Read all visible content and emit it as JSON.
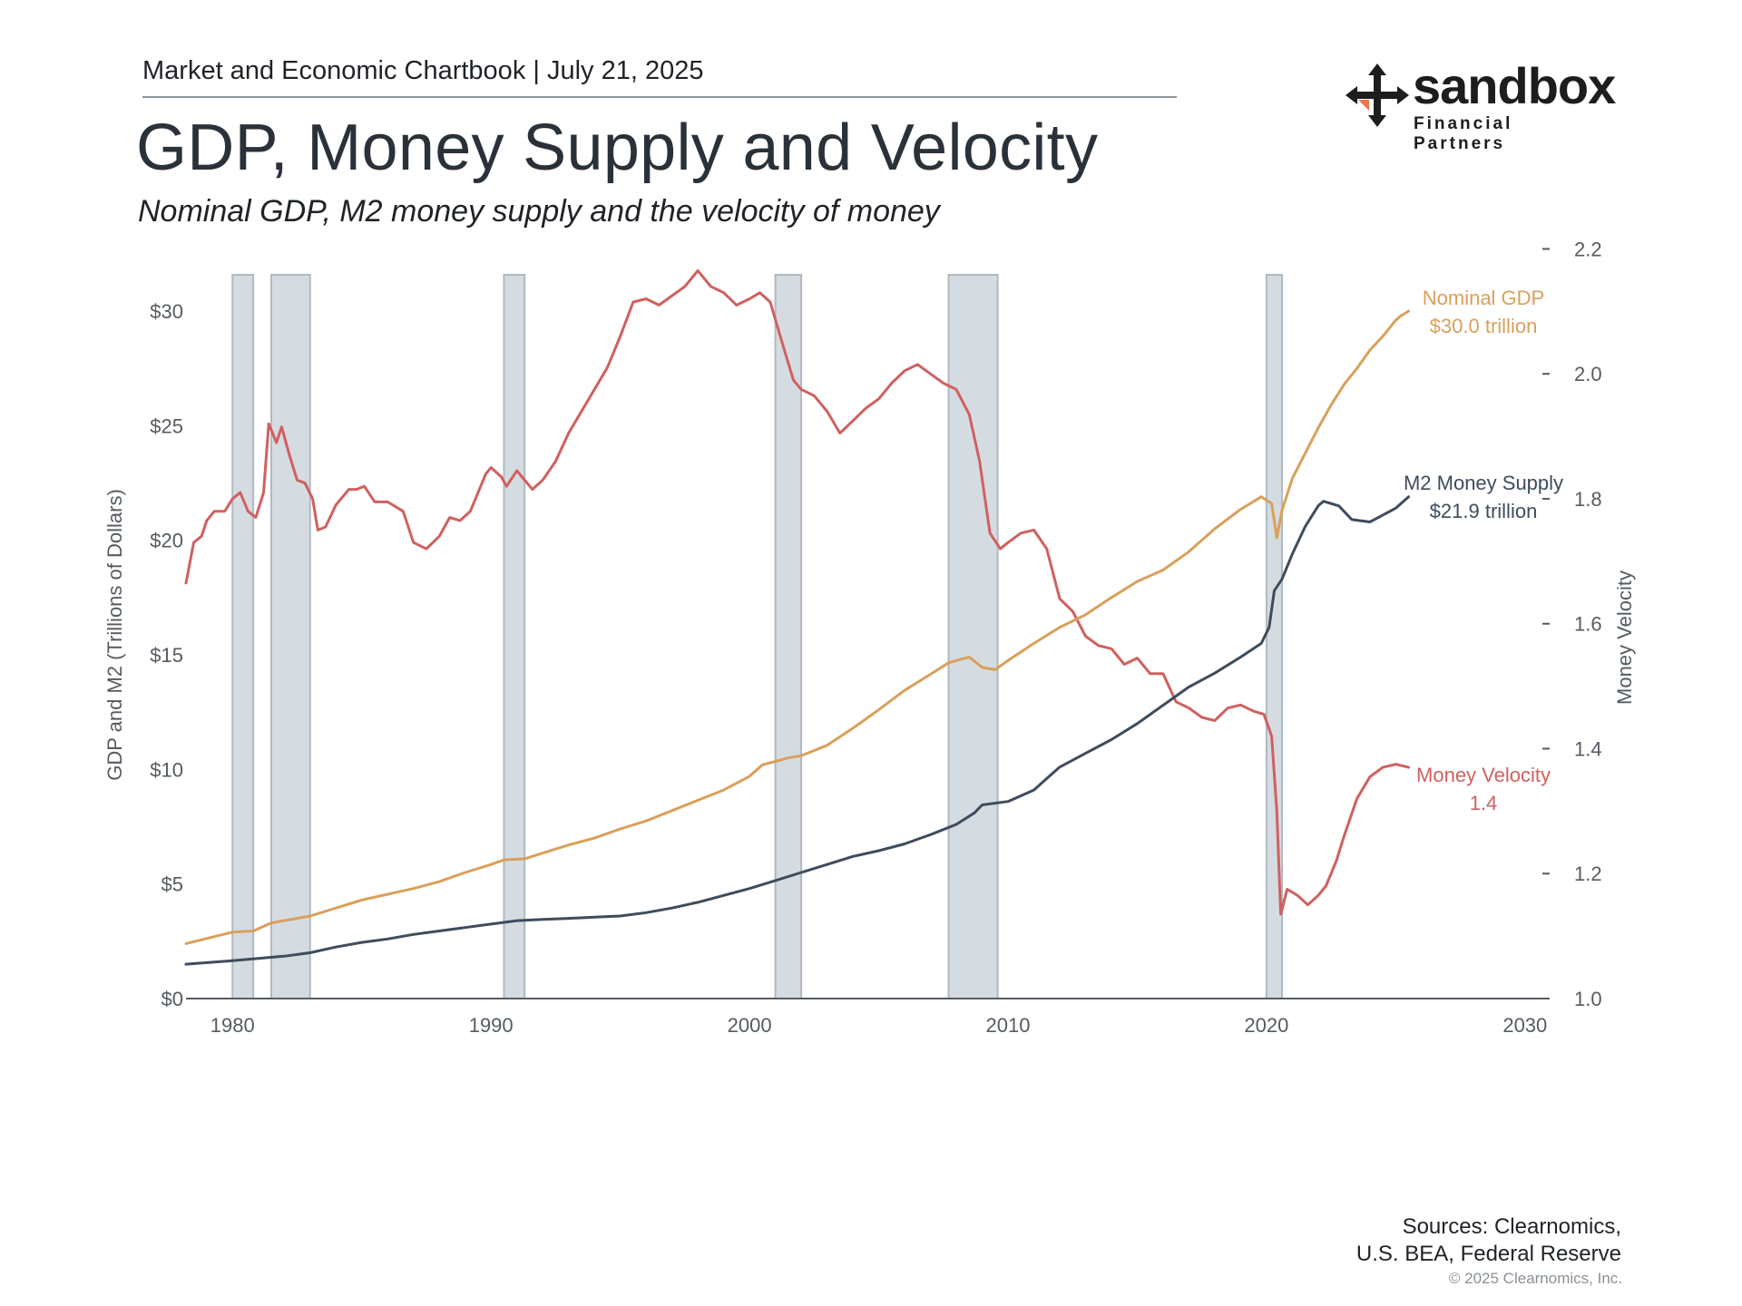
{
  "header": {
    "chartbook_line": "Market and Economic Chartbook | July 21, 2025",
    "title": "GDP, Money Supply and Velocity",
    "subtitle": "Nominal GDP, M2 money supply and the velocity of money"
  },
  "logo": {
    "word": "sandbox",
    "sub": "Financial Partners",
    "accent_color": "#e8774a"
  },
  "footer": {
    "sources_line1": "Sources: Clearnomics,",
    "sources_line2": "U.S. BEA, Federal Reserve",
    "copyright": "© 2025 Clearnomics, Inc."
  },
  "chart_data": {
    "type": "line",
    "ylabel_left": "GDP and M2 (Trillions of Dollars)",
    "ylabel_right": "Money Velocity",
    "xlim": [
      1978.2,
      2031.2
    ],
    "ylim_left": [
      0,
      30
    ],
    "ylim_right": [
      1.0,
      2.25
    ],
    "x_ticks": [
      "1980",
      "1990",
      "2000",
      "2010",
      "2020",
      "2030"
    ],
    "x_tick_values": [
      1980,
      1990,
      2000,
      2010,
      2020,
      2030
    ],
    "y_left_ticks": [
      "$0",
      "$5",
      "$10",
      "$15",
      "$20",
      "$25",
      "$30"
    ],
    "y_left_tick_values": [
      0,
      5,
      10,
      15,
      20,
      25,
      30
    ],
    "y_right_ticks": [
      "1.0",
      "1.2",
      "1.4",
      "1.6",
      "1.8",
      "2.0",
      "2.2"
    ],
    "y_right_tick_values": [
      1.0,
      1.2,
      1.4,
      1.6,
      1.8,
      2.0,
      2.2
    ],
    "recessions": [
      [
        1980.0,
        1980.8
      ],
      [
        1981.5,
        1983.0
      ],
      [
        1990.5,
        1991.3
      ],
      [
        2001.0,
        2002.0
      ],
      [
        2007.7,
        2009.6
      ],
      [
        2020.0,
        2020.6
      ]
    ],
    "colors": {
      "gdp": "#d9a05b",
      "m2": "#3e4c5c",
      "velocity": "#d06060",
      "recession": "#d5dce1",
      "recession_border": "#b0b9c1",
      "axis": "#555b61",
      "tick_text": "#555b61"
    },
    "series": [
      {
        "name": "Nominal GDP",
        "axis": "left",
        "label_line1": "Nominal GDP",
        "label_line2": "$30.0 trillion",
        "points": [
          [
            1978.2,
            2.4
          ],
          [
            1980.0,
            2.9
          ],
          [
            1980.8,
            2.95
          ],
          [
            1981.5,
            3.3
          ],
          [
            1983.0,
            3.6
          ],
          [
            1985.0,
            4.3
          ],
          [
            1987.0,
            4.8
          ],
          [
            1988.0,
            5.1
          ],
          [
            1989.0,
            5.5
          ],
          [
            1990.0,
            5.85
          ],
          [
            1990.5,
            6.05
          ],
          [
            1991.3,
            6.1
          ],
          [
            1992.0,
            6.35
          ],
          [
            1993.0,
            6.7
          ],
          [
            1994.0,
            7.0
          ],
          [
            1995.0,
            7.4
          ],
          [
            1996.0,
            7.75
          ],
          [
            1997.0,
            8.2
          ],
          [
            1998.0,
            8.65
          ],
          [
            1999.0,
            9.1
          ],
          [
            2000.0,
            9.7
          ],
          [
            2000.5,
            10.2
          ],
          [
            2001.0,
            10.35
          ],
          [
            2001.5,
            10.5
          ],
          [
            2002.0,
            10.6
          ],
          [
            2003.0,
            11.05
          ],
          [
            2004.0,
            11.8
          ],
          [
            2005.0,
            12.6
          ],
          [
            2006.0,
            13.45
          ],
          [
            2007.0,
            14.15
          ],
          [
            2007.7,
            14.65
          ],
          [
            2008.0,
            14.75
          ],
          [
            2008.5,
            14.9
          ],
          [
            2009.0,
            14.45
          ],
          [
            2009.5,
            14.35
          ],
          [
            2010.0,
            14.75
          ],
          [
            2011.0,
            15.5
          ],
          [
            2012.0,
            16.2
          ],
          [
            2013.0,
            16.75
          ],
          [
            2014.0,
            17.5
          ],
          [
            2015.0,
            18.2
          ],
          [
            2016.0,
            18.7
          ],
          [
            2017.0,
            19.5
          ],
          [
            2018.0,
            20.5
          ],
          [
            2019.0,
            21.35
          ],
          [
            2019.8,
            21.9
          ],
          [
            2020.2,
            21.6
          ],
          [
            2020.4,
            20.1
          ],
          [
            2020.6,
            21.3
          ],
          [
            2021.0,
            22.7
          ],
          [
            2021.5,
            23.8
          ],
          [
            2022.0,
            24.9
          ],
          [
            2022.5,
            25.9
          ],
          [
            2023.0,
            26.8
          ],
          [
            2023.5,
            27.5
          ],
          [
            2024.0,
            28.3
          ],
          [
            2024.5,
            28.9
          ],
          [
            2025.0,
            29.6
          ],
          [
            2025.2,
            29.8
          ],
          [
            2025.5,
            30.0
          ]
        ]
      },
      {
        "name": "M2 Money Supply",
        "axis": "left",
        "label_line1": "M2 Money Supply",
        "label_line2": "$21.9 trillion",
        "points": [
          [
            1978.2,
            1.5
          ],
          [
            1980.0,
            1.65
          ],
          [
            1982.0,
            1.85
          ],
          [
            1983.0,
            2.0
          ],
          [
            1984.0,
            2.25
          ],
          [
            1985.0,
            2.45
          ],
          [
            1986.0,
            2.6
          ],
          [
            1987.0,
            2.8
          ],
          [
            1988.0,
            2.95
          ],
          [
            1989.0,
            3.1
          ],
          [
            1990.0,
            3.25
          ],
          [
            1991.0,
            3.4
          ],
          [
            1992.0,
            3.45
          ],
          [
            1993.0,
            3.5
          ],
          [
            1994.0,
            3.55
          ],
          [
            1995.0,
            3.6
          ],
          [
            1996.0,
            3.75
          ],
          [
            1997.0,
            3.95
          ],
          [
            1998.0,
            4.2
          ],
          [
            1999.0,
            4.5
          ],
          [
            2000.0,
            4.8
          ],
          [
            2001.0,
            5.15
          ],
          [
            2002.0,
            5.5
          ],
          [
            2003.0,
            5.85
          ],
          [
            2004.0,
            6.2
          ],
          [
            2005.0,
            6.45
          ],
          [
            2006.0,
            6.75
          ],
          [
            2007.0,
            7.15
          ],
          [
            2008.0,
            7.6
          ],
          [
            2008.7,
            8.1
          ],
          [
            2009.0,
            8.45
          ],
          [
            2010.0,
            8.6
          ],
          [
            2011.0,
            9.1
          ],
          [
            2011.5,
            9.6
          ],
          [
            2012.0,
            10.1
          ],
          [
            2013.0,
            10.7
          ],
          [
            2014.0,
            11.3
          ],
          [
            2015.0,
            12.0
          ],
          [
            2016.0,
            12.8
          ],
          [
            2017.0,
            13.6
          ],
          [
            2018.0,
            14.2
          ],
          [
            2019.0,
            14.9
          ],
          [
            2019.8,
            15.5
          ],
          [
            2020.1,
            16.2
          ],
          [
            2020.3,
            17.8
          ],
          [
            2020.6,
            18.3
          ],
          [
            2021.0,
            19.4
          ],
          [
            2021.5,
            20.6
          ],
          [
            2022.0,
            21.5
          ],
          [
            2022.2,
            21.7
          ],
          [
            2022.8,
            21.5
          ],
          [
            2023.3,
            20.9
          ],
          [
            2024.0,
            20.8
          ],
          [
            2024.5,
            21.1
          ],
          [
            2025.0,
            21.4
          ],
          [
            2025.5,
            21.9
          ]
        ]
      },
      {
        "name": "Money Velocity",
        "axis": "right",
        "label_line1": "Money Velocity",
        "label_line2": "1.4",
        "points": [
          [
            1978.2,
            1.665
          ],
          [
            1978.5,
            1.73
          ],
          [
            1978.8,
            1.74
          ],
          [
            1979.0,
            1.765
          ],
          [
            1979.3,
            1.78
          ],
          [
            1979.7,
            1.78
          ],
          [
            1980.0,
            1.8
          ],
          [
            1980.3,
            1.81
          ],
          [
            1980.6,
            1.78
          ],
          [
            1980.9,
            1.77
          ],
          [
            1981.2,
            1.81
          ],
          [
            1981.4,
            1.92
          ],
          [
            1981.7,
            1.89
          ],
          [
            1981.9,
            1.915
          ],
          [
            1982.2,
            1.87
          ],
          [
            1982.5,
            1.83
          ],
          [
            1982.8,
            1.825
          ],
          [
            1983.1,
            1.8
          ],
          [
            1983.3,
            1.75
          ],
          [
            1983.6,
            1.755
          ],
          [
            1984.0,
            1.79
          ],
          [
            1984.5,
            1.815
          ],
          [
            1984.8,
            1.815
          ],
          [
            1985.1,
            1.82
          ],
          [
            1985.5,
            1.795
          ],
          [
            1986.0,
            1.795
          ],
          [
            1986.6,
            1.78
          ],
          [
            1987.0,
            1.73
          ],
          [
            1987.5,
            1.72
          ],
          [
            1988.0,
            1.74
          ],
          [
            1988.4,
            1.77
          ],
          [
            1988.8,
            1.765
          ],
          [
            1989.2,
            1.78
          ],
          [
            1989.8,
            1.84
          ],
          [
            1990.0,
            1.85
          ],
          [
            1990.4,
            1.835
          ],
          [
            1990.6,
            1.82
          ],
          [
            1991.0,
            1.845
          ],
          [
            1991.3,
            1.83
          ],
          [
            1991.6,
            1.815
          ],
          [
            1992.0,
            1.83
          ],
          [
            1992.5,
            1.86
          ],
          [
            1993.0,
            1.905
          ],
          [
            1993.5,
            1.94
          ],
          [
            1994.0,
            1.975
          ],
          [
            1994.5,
            2.01
          ],
          [
            1995.0,
            2.06
          ],
          [
            1995.5,
            2.115
          ],
          [
            1996.0,
            2.12
          ],
          [
            1996.5,
            2.11
          ],
          [
            1997.0,
            2.125
          ],
          [
            1997.5,
            2.14
          ],
          [
            1998.0,
            2.165
          ],
          [
            1998.5,
            2.14
          ],
          [
            1999.0,
            2.13
          ],
          [
            1999.5,
            2.11
          ],
          [
            2000.0,
            2.12
          ],
          [
            2000.4,
            2.13
          ],
          [
            2000.8,
            2.115
          ],
          [
            2001.3,
            2.045
          ],
          [
            2001.7,
            1.99
          ],
          [
            2002.0,
            1.975
          ],
          [
            2002.5,
            1.965
          ],
          [
            2003.0,
            1.94
          ],
          [
            2003.5,
            1.905
          ],
          [
            2004.0,
            1.925
          ],
          [
            2004.5,
            1.945
          ],
          [
            2005.0,
            1.96
          ],
          [
            2005.5,
            1.985
          ],
          [
            2006.0,
            2.005
          ],
          [
            2006.5,
            2.015
          ],
          [
            2007.0,
            2.0
          ],
          [
            2007.5,
            1.985
          ],
          [
            2008.0,
            1.975
          ],
          [
            2008.5,
            1.935
          ],
          [
            2008.9,
            1.86
          ],
          [
            2009.3,
            1.745
          ],
          [
            2009.7,
            1.72
          ],
          [
            2010.0,
            1.73
          ],
          [
            2010.5,
            1.745
          ],
          [
            2011.0,
            1.75
          ],
          [
            2011.5,
            1.72
          ],
          [
            2012.0,
            1.64
          ],
          [
            2012.5,
            1.62
          ],
          [
            2013.0,
            1.58
          ],
          [
            2013.5,
            1.565
          ],
          [
            2014.0,
            1.56
          ],
          [
            2014.5,
            1.535
          ],
          [
            2015.0,
            1.545
          ],
          [
            2015.5,
            1.52
          ],
          [
            2016.0,
            1.52
          ],
          [
            2016.5,
            1.475
          ],
          [
            2017.0,
            1.465
          ],
          [
            2017.5,
            1.45
          ],
          [
            2018.0,
            1.445
          ],
          [
            2018.5,
            1.465
          ],
          [
            2019.0,
            1.47
          ],
          [
            2019.5,
            1.46
          ],
          [
            2019.9,
            1.455
          ],
          [
            2020.2,
            1.42
          ],
          [
            2020.4,
            1.3
          ],
          [
            2020.55,
            1.135
          ],
          [
            2020.8,
            1.175
          ],
          [
            2021.2,
            1.165
          ],
          [
            2021.6,
            1.15
          ],
          [
            2022.0,
            1.165
          ],
          [
            2022.3,
            1.18
          ],
          [
            2022.7,
            1.22
          ],
          [
            2023.0,
            1.26
          ],
          [
            2023.5,
            1.32
          ],
          [
            2024.0,
            1.355
          ],
          [
            2024.5,
            1.37
          ],
          [
            2025.0,
            1.375
          ],
          [
            2025.5,
            1.37
          ]
        ]
      }
    ]
  }
}
